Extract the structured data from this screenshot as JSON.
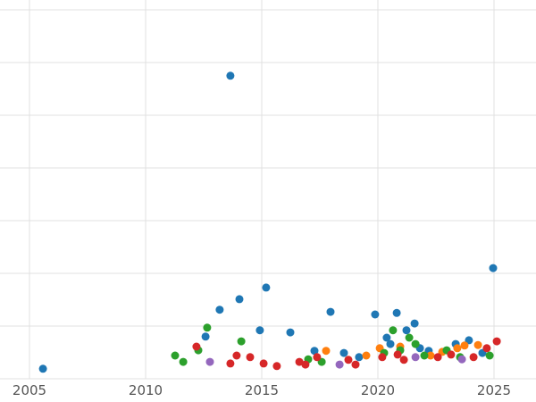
{
  "figure": {
    "background_color": "#ffffff",
    "grid_color": "#e0e0e0",
    "tick_label_color": "#555555"
  },
  "chart_data": {
    "type": "scatter",
    "title": "",
    "xlabel": "",
    "ylabel": "",
    "grid": true,
    "legend": "none",
    "x_ticks": [
      2005,
      2010,
      2015,
      2020,
      2025
    ],
    "x_tick_labels": [
      "2005",
      "2010",
      "2015",
      "2020",
      "2025"
    ],
    "y_ticks": [
      0,
      1,
      2,
      3,
      4,
      5,
      6,
      7
    ],
    "y_tick_labels": [],
    "xlim": [
      2003.7,
      2026.8
    ],
    "ylim": [
      0,
      7.2
    ],
    "marker_size_px": 9,
    "series": [
      {
        "name": "series-blue",
        "color": "#1f77b4",
        "points": [
          [
            2005.58,
            0.19
          ],
          [
            2012.58,
            0.8
          ],
          [
            2013.19,
            1.31
          ],
          [
            2013.65,
            5.75
          ],
          [
            2014.04,
            1.51
          ],
          [
            2014.92,
            0.92
          ],
          [
            2015.19,
            1.73
          ],
          [
            2016.23,
            0.88
          ],
          [
            2017.27,
            0.53
          ],
          [
            2017.96,
            1.27
          ],
          [
            2018.54,
            0.49
          ],
          [
            2019.19,
            0.41
          ],
          [
            2019.88,
            1.22
          ],
          [
            2020.38,
            0.78
          ],
          [
            2020.54,
            0.66
          ],
          [
            2020.81,
            1.25
          ],
          [
            2021.23,
            0.92
          ],
          [
            2021.58,
            1.05
          ],
          [
            2021.81,
            0.58
          ],
          [
            2022.19,
            0.53
          ],
          [
            2023.35,
            0.66
          ],
          [
            2023.92,
            0.73
          ],
          [
            2024.5,
            0.49
          ],
          [
            2024.96,
            2.1
          ]
        ]
      },
      {
        "name": "series-orange",
        "color": "#ff7f0e",
        "points": [
          [
            2017.77,
            0.53
          ],
          [
            2019.5,
            0.44
          ],
          [
            2020.08,
            0.58
          ],
          [
            2020.96,
            0.61
          ],
          [
            2022.27,
            0.44
          ],
          [
            2022.77,
            0.51
          ],
          [
            2023.42,
            0.58
          ],
          [
            2023.73,
            0.63
          ],
          [
            2024.31,
            0.64
          ]
        ]
      },
      {
        "name": "series-green",
        "color": "#2ca02c",
        "points": [
          [
            2011.27,
            0.44
          ],
          [
            2011.62,
            0.32
          ],
          [
            2012.27,
            0.54
          ],
          [
            2012.65,
            0.97
          ],
          [
            2014.12,
            0.71
          ],
          [
            2017.0,
            0.37
          ],
          [
            2017.58,
            0.32
          ],
          [
            2020.27,
            0.49
          ],
          [
            2020.65,
            0.92
          ],
          [
            2020.96,
            0.54
          ],
          [
            2021.35,
            0.78
          ],
          [
            2021.62,
            0.66
          ],
          [
            2022.0,
            0.44
          ],
          [
            2022.96,
            0.54
          ],
          [
            2023.54,
            0.41
          ],
          [
            2024.81,
            0.44
          ]
        ]
      },
      {
        "name": "series-red",
        "color": "#d62728",
        "points": [
          [
            2012.19,
            0.61
          ],
          [
            2013.65,
            0.29
          ],
          [
            2013.92,
            0.44
          ],
          [
            2014.5,
            0.41
          ],
          [
            2015.08,
            0.29
          ],
          [
            2015.65,
            0.24
          ],
          [
            2016.62,
            0.32
          ],
          [
            2016.88,
            0.27
          ],
          [
            2017.38,
            0.41
          ],
          [
            2018.73,
            0.36
          ],
          [
            2019.04,
            0.27
          ],
          [
            2020.19,
            0.41
          ],
          [
            2020.85,
            0.46
          ],
          [
            2021.12,
            0.36
          ],
          [
            2022.58,
            0.41
          ],
          [
            2023.15,
            0.46
          ],
          [
            2024.12,
            0.41
          ],
          [
            2024.69,
            0.58
          ],
          [
            2025.12,
            0.71
          ]
        ]
      },
      {
        "name": "series-purple",
        "color": "#9467bd",
        "points": [
          [
            2012.77,
            0.32
          ],
          [
            2018.35,
            0.27
          ],
          [
            2021.62,
            0.41
          ],
          [
            2023.62,
            0.37
          ]
        ]
      }
    ]
  }
}
